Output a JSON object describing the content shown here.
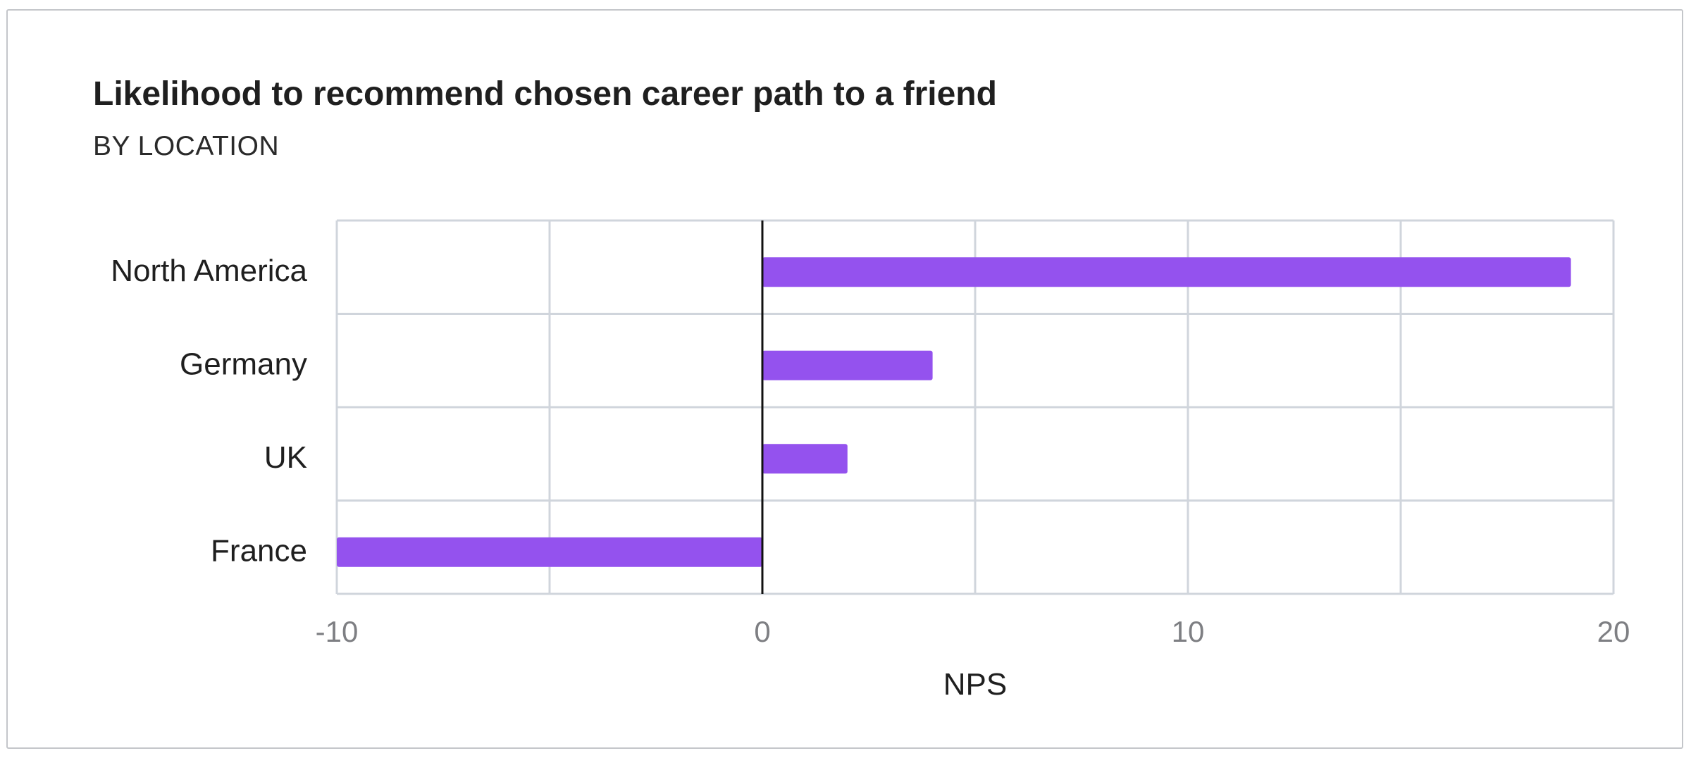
{
  "colors": {
    "bar": "#9452ee",
    "grid": "#d0d5dc",
    "zero_line": "#111111",
    "card_border": "#c4c6ca"
  },
  "chart_data": {
    "type": "bar",
    "orientation": "horizontal",
    "title": "Likelihood to recommend chosen career path to a friend",
    "subtitle": "BY LOCATION",
    "xlabel": "NPS",
    "ylabel": "",
    "categories": [
      "North America",
      "Germany",
      "UK",
      "France"
    ],
    "values": [
      19,
      4,
      2,
      -10
    ],
    "xlim": [
      -10,
      20
    ],
    "x_ticks": [
      "-10",
      "0",
      "10",
      "20"
    ],
    "grid": true,
    "legend": "none"
  }
}
